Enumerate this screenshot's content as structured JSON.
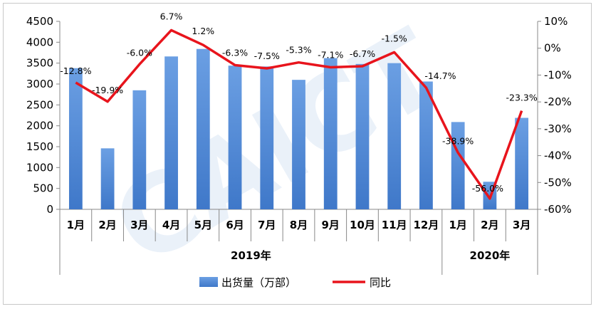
{
  "chart_data": {
    "type": "bar+line",
    "categories": [
      "1月",
      "2月",
      "3月",
      "4月",
      "5月",
      "6月",
      "7月",
      "8月",
      "9月",
      "10月",
      "11月",
      "12月",
      "1月",
      "2月",
      "3月"
    ],
    "year_groups": [
      {
        "label": "2019年",
        "count": 12
      },
      {
        "label": "2020年",
        "count": 3
      }
    ],
    "series": [
      {
        "name": "出货量（万部）",
        "type": "bar",
        "axis": "left",
        "values": [
          3380,
          1460,
          2850,
          3660,
          3840,
          3440,
          3420,
          3100,
          3620,
          3480,
          3500,
          3060,
          2090,
          660,
          2190
        ],
        "color": "#5b8fd6"
      },
      {
        "name": "同比",
        "type": "line",
        "axis": "right",
        "values": [
          -12.8,
          -19.9,
          -6.0,
          6.7,
          1.2,
          -6.3,
          -7.5,
          -5.3,
          -7.1,
          -6.7,
          -1.5,
          -14.7,
          -38.9,
          -56.0,
          -23.3
        ],
        "labels": [
          "-12.8%",
          "-19.9%",
          "-6.0%",
          "6.7%",
          "1.2%",
          "-6.3%",
          "-7.5%",
          "-5.3%",
          "-7.1%",
          "-6.7%",
          "-1.5%",
          "-14.7%",
          "-38.9%",
          "-56.0%",
          "-23.3%"
        ],
        "color": "#e8141c"
      }
    ],
    "y_left": {
      "min": 0,
      "max": 4500,
      "step": 500,
      "ticks": [
        "0",
        "500",
        "1000",
        "1500",
        "2000",
        "2500",
        "3000",
        "3500",
        "4000",
        "4500"
      ]
    },
    "y_right": {
      "min": -60,
      "max": 10,
      "step": 10,
      "ticks": [
        "-60%",
        "-50%",
        "-40%",
        "-30%",
        "-20%",
        "-10%",
        "0%",
        "10%"
      ]
    },
    "legend_position": "bottom",
    "grid": false
  }
}
